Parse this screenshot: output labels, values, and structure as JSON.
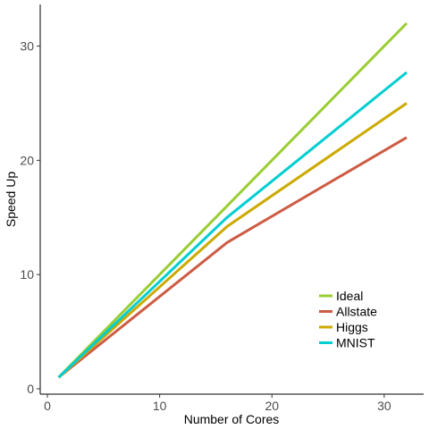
{
  "chart_data": {
    "type": "line",
    "xlabel": "Number of Cores",
    "ylabel": "Speed Up",
    "xlim": [
      0,
      33
    ],
    "ylim": [
      0,
      33
    ],
    "xticks": [
      0,
      10,
      20,
      30
    ],
    "yticks": [
      0,
      10,
      20,
      30
    ],
    "grid": false,
    "legend_position": "bottom-right",
    "series": [
      {
        "name": "Ideal",
        "color": "#9ACD32",
        "x": [
          1,
          16,
          32
        ],
        "y": [
          1,
          16,
          32
        ]
      },
      {
        "name": "Allstate",
        "color": "#CD5C45",
        "x": [
          1,
          16,
          32
        ],
        "y": [
          1,
          12.8,
          22
        ]
      },
      {
        "name": "Higgs",
        "color": "#CCAA00",
        "x": [
          1,
          16,
          32
        ],
        "y": [
          1,
          14.2,
          25
        ]
      },
      {
        "name": "MNIST",
        "color": "#00CED1",
        "x": [
          1,
          16,
          32
        ],
        "y": [
          1,
          15,
          27.7
        ]
      }
    ]
  }
}
